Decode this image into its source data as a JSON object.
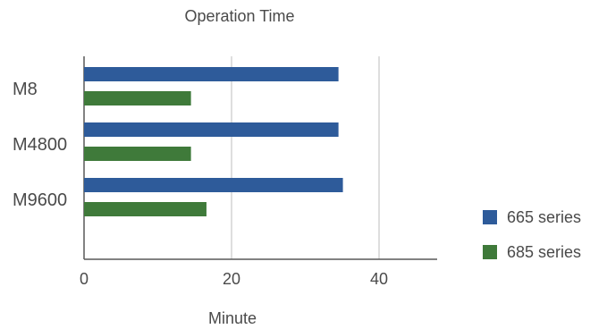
{
  "chart_data": {
    "type": "bar",
    "orientation": "horizontal",
    "title": "Operation Time",
    "xlabel": "Minute",
    "ylabel": "",
    "categories": [
      "M8",
      "M4800",
      "M9600"
    ],
    "series": [
      {
        "name": "665 series",
        "values": [
          34.5,
          34.5,
          35.1
        ],
        "color": "#2e5b9a"
      },
      {
        "name": "685 series",
        "values": [
          14.5,
          14.5,
          16.6
        ],
        "color": "#3f7a3a"
      }
    ],
    "xlim": [
      0,
      48
    ],
    "xticks": [
      0,
      20,
      40
    ],
    "grid": "vertical",
    "legend_position": "right"
  }
}
